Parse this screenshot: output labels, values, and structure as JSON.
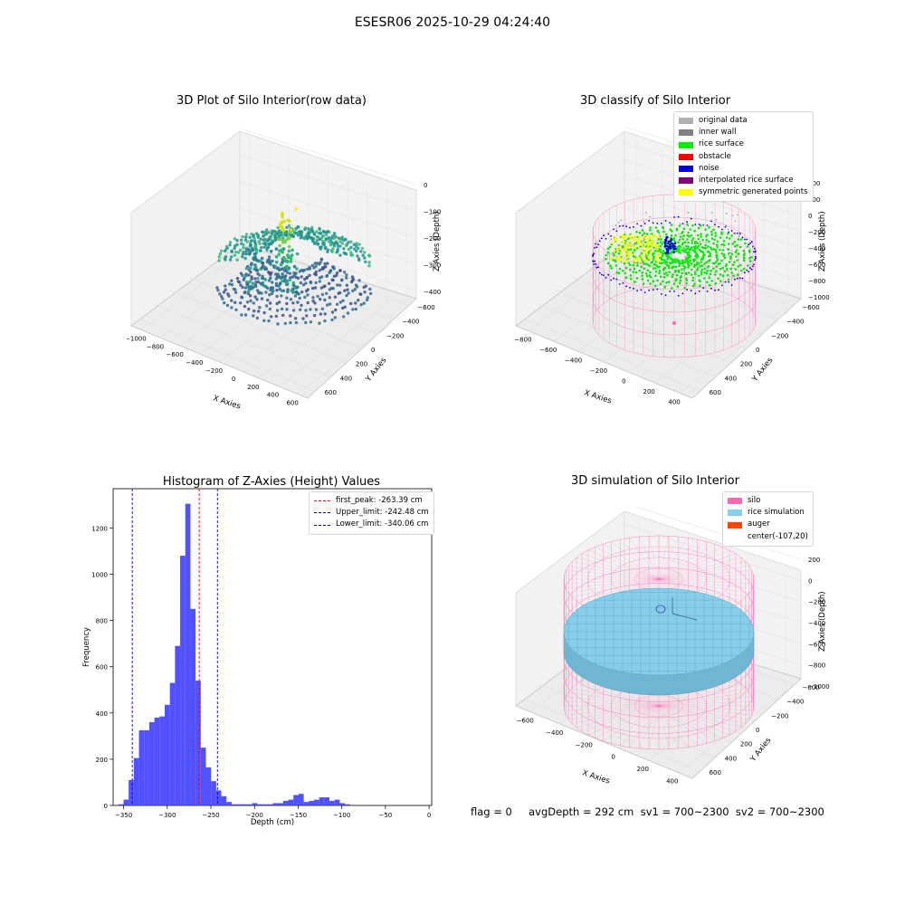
{
  "suptitle": "ESESR06 2025-10-29 04:24:40",
  "colors": {
    "original": "#b0b0b0",
    "wall": "#808080",
    "surface": "#00ee00",
    "obstacle": "#ff0000",
    "noise": "#0000dd",
    "interp": "#800080",
    "sym": "#ffff00",
    "silo": "#ff69b4",
    "rice": "#87ceeb",
    "auger": "#ff4500",
    "hist": "#3333ff"
  },
  "panel_raw": {
    "title": "3D Plot of Silo Interior(row data)",
    "xlabel": "X Axies",
    "ylabel": "Y Axies",
    "zlabel": "Z Axies (Depth)",
    "xticks": [
      "−1000",
      "−800",
      "−600",
      "−400",
      "−200",
      "0",
      "200",
      "400",
      "600"
    ],
    "yticks": [
      "600",
      "400",
      "200",
      "0",
      "−200",
      "−400",
      "−600"
    ],
    "zticks": [
      "0",
      "−100",
      "−200",
      "−300",
      "−400"
    ]
  },
  "panel_classify": {
    "title": "3D classify of Silo Interior",
    "xlabel": "X Axies",
    "ylabel": "Y Axies",
    "zlabel": "Z Axies (Depth)",
    "xticks": [
      "−800",
      "−600",
      "−400",
      "−200",
      "0",
      "200",
      "400"
    ],
    "yticks": [
      "600",
      "400",
      "200",
      "0",
      "−200",
      "−400",
      "−600"
    ],
    "zticks": [
      "400",
      "200",
      "0",
      "−200",
      "−400",
      "−600",
      "−800",
      "−1000"
    ],
    "legend": [
      "original data",
      "inner wall",
      "rice surface",
      "obstacle",
      "noise",
      "interpolated rice surface",
      "symmetric generated points"
    ]
  },
  "panel_sim": {
    "title": "3D simulation of Silo Interior",
    "xlabel": "X Axies",
    "ylabel": "Y Axies",
    "zlabel": "Z Axies (Depth)",
    "xticks": [
      "−600",
      "−400",
      "−200",
      "0",
      "200",
      "400"
    ],
    "yticks": [
      "600",
      "400",
      "200",
      "0",
      "−200",
      "−400",
      "−600"
    ],
    "zticks": [
      "200",
      "0",
      "−200",
      "−400",
      "−600",
      "−800",
      "−1000"
    ],
    "legend": [
      "silo",
      "rice simulation",
      "auger",
      "center(-107,20)"
    ]
  },
  "footer": "flag = 0     avgDepth = 292 cm  sv1 = 700~2300  sv2 = 700~2300",
  "chart_data": [
    {
      "type": "bar",
      "title": "Histogram of Z-Axies (Height) Values",
      "xlabel": "Depth (cm)",
      "ylabel": "Frequency",
      "xlim": [
        -362,
        3
      ],
      "ylim": [
        0,
        1370
      ],
      "xticks": [
        -350,
        -300,
        -250,
        -200,
        -150,
        -100,
        -50,
        0
      ],
      "yticks": [
        0,
        200,
        400,
        600,
        800,
        1000,
        1200
      ],
      "bin_left": -356,
      "bin_width": 5.9,
      "values": [
        5,
        25,
        110,
        205,
        325,
        325,
        360,
        380,
        385,
        435,
        530,
        690,
        1080,
        1305,
        850,
        540,
        250,
        165,
        105,
        65,
        40,
        15,
        5,
        5,
        5,
        5,
        10,
        5,
        5,
        5,
        10,
        10,
        20,
        25,
        45,
        50,
        15,
        20,
        25,
        35,
        35,
        20,
        25,
        10,
        5
      ],
      "reference_lines": [
        {
          "label": "first_peak: -263.39 cm",
          "x": -263.39,
          "color": "#ff0000"
        },
        {
          "label": "Upper_limit: -242.48 cm",
          "x": -242.48,
          "color": "#0000cc"
        },
        {
          "label": "Lower_limit: -340.06 cm",
          "x": -340.06,
          "color": "#0000cc"
        }
      ],
      "legend_position": "top-right",
      "grid": false
    }
  ]
}
